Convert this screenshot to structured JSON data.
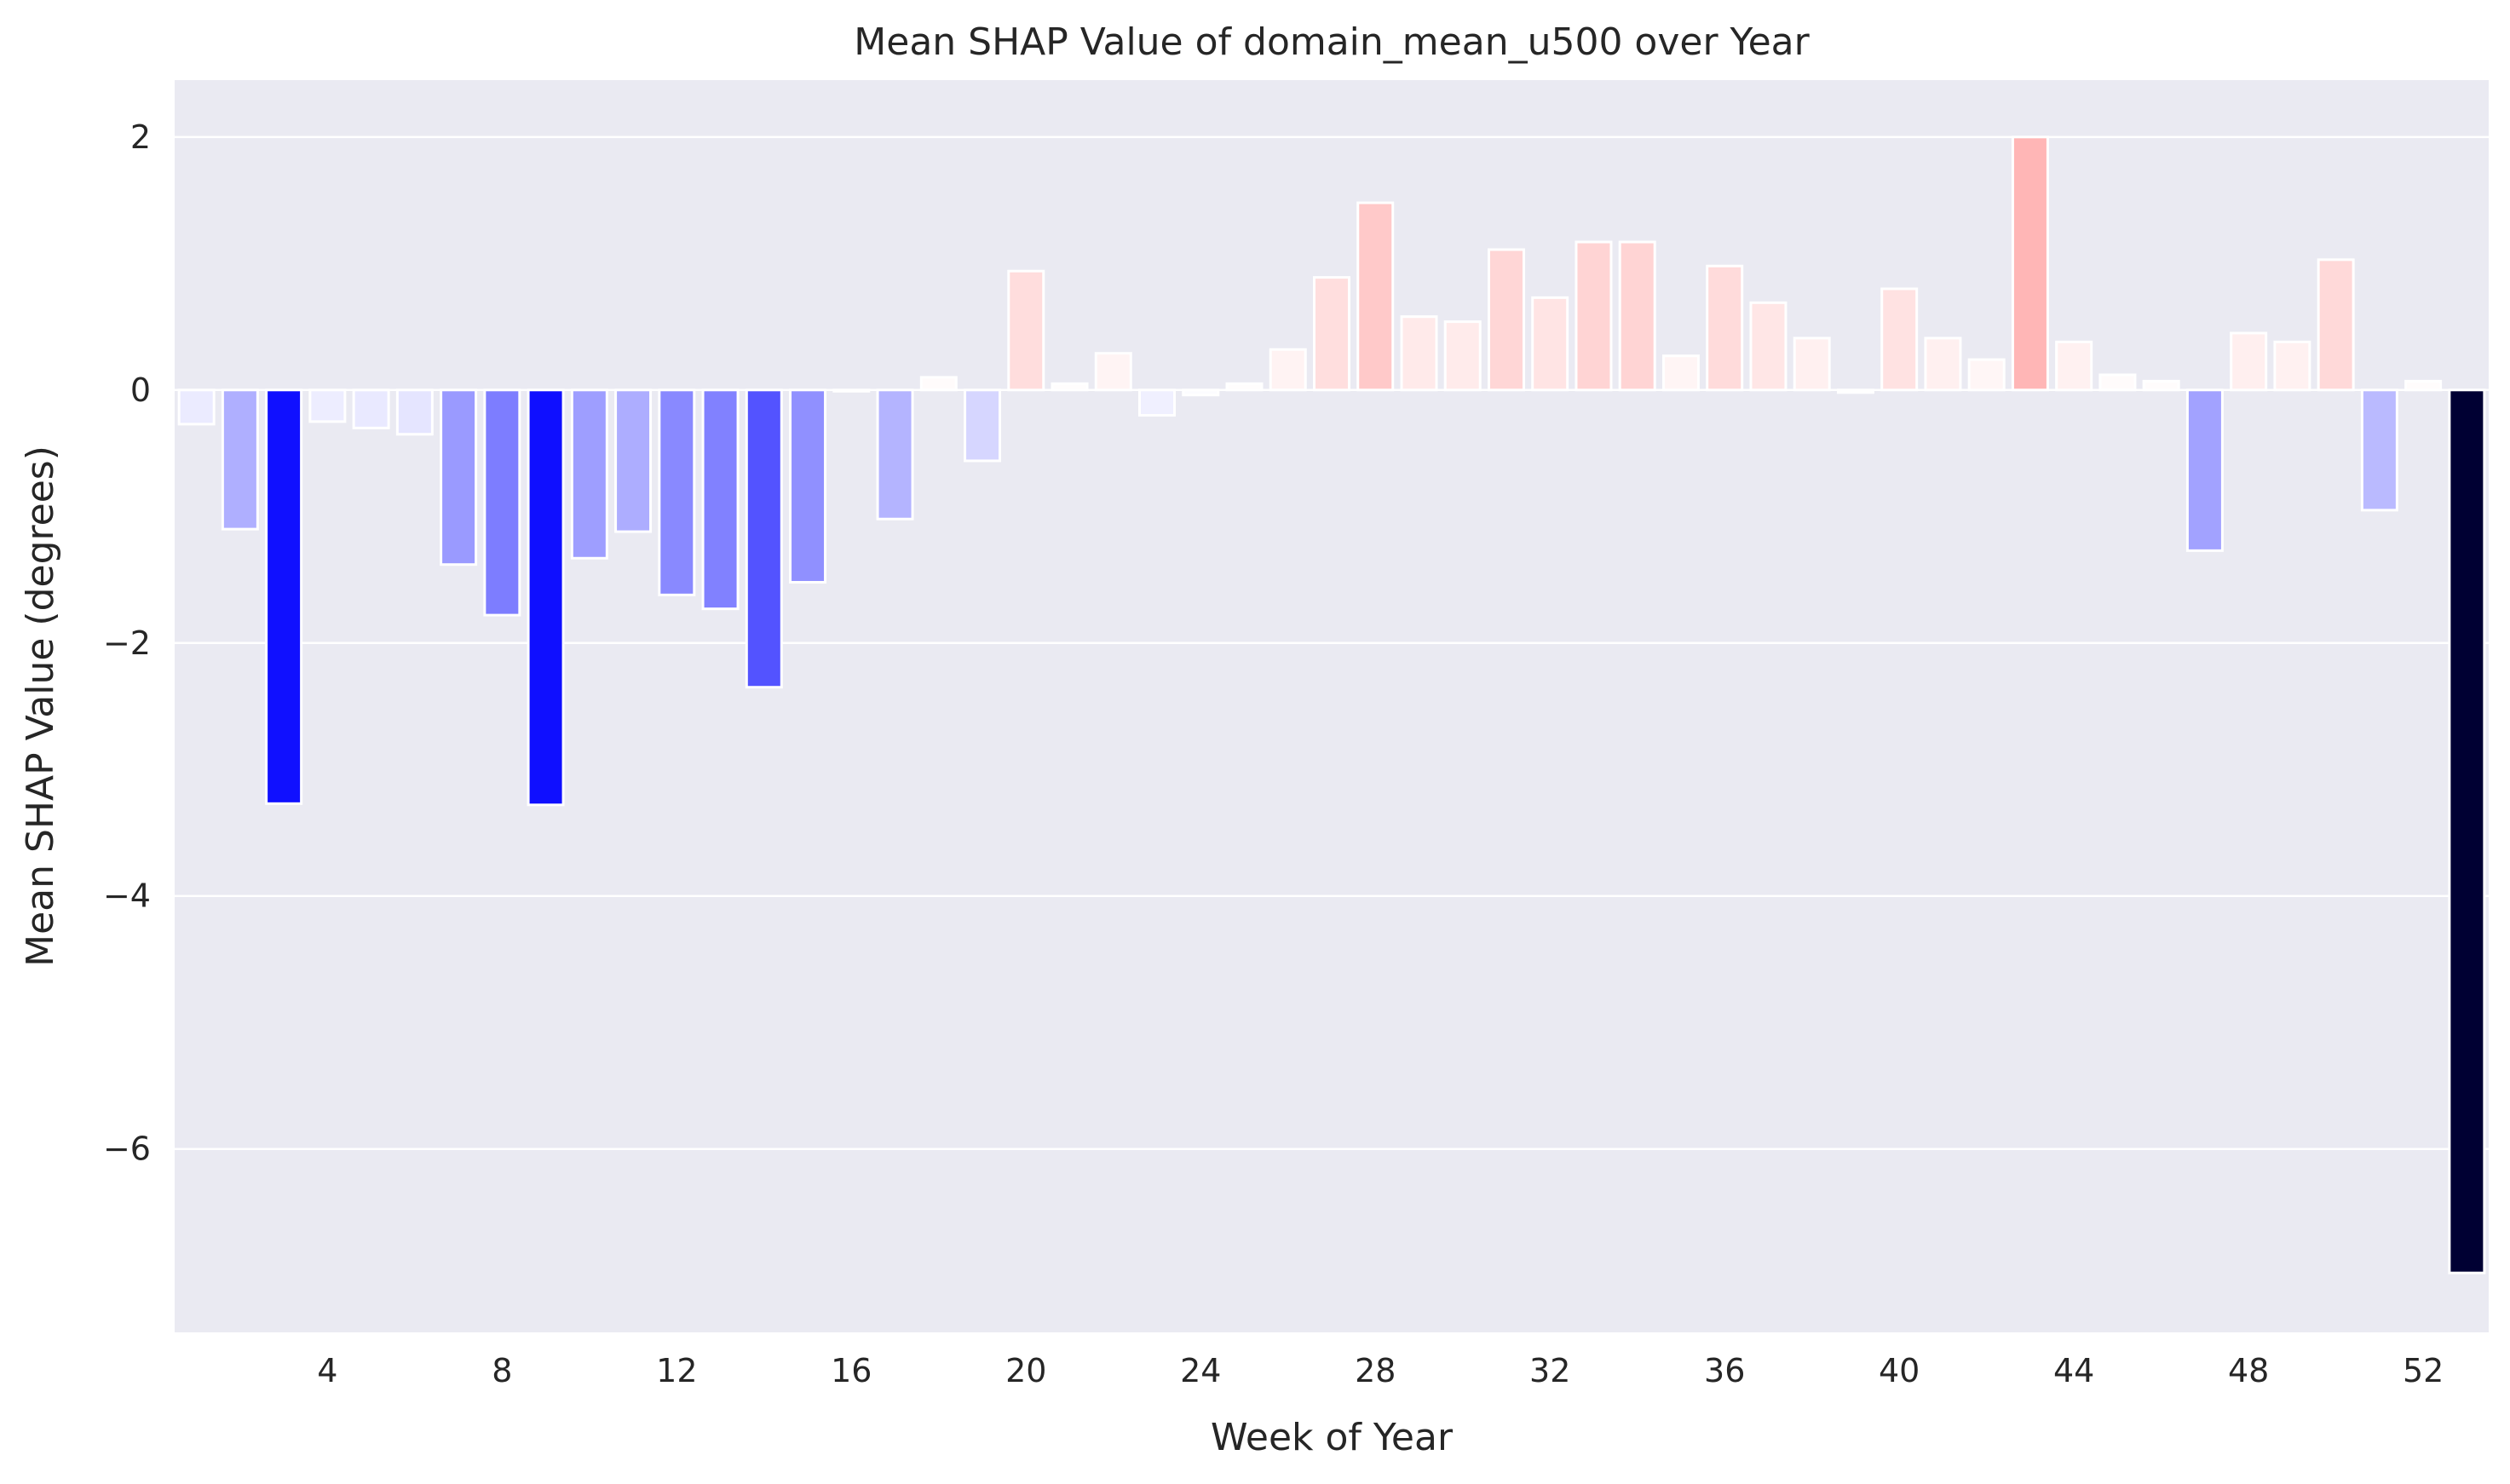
{
  "chart_data": {
    "type": "bar",
    "title": "Mean SHAP Value of domain_mean_u500 over Year",
    "xlabel": "Week of Year",
    "ylabel": "Mean SHAP Value (degrees)",
    "x": [
      1,
      2,
      3,
      4,
      5,
      6,
      7,
      8,
      9,
      10,
      11,
      12,
      13,
      14,
      15,
      16,
      17,
      18,
      19,
      20,
      21,
      22,
      23,
      24,
      25,
      26,
      27,
      28,
      29,
      30,
      31,
      32,
      33,
      34,
      35,
      36,
      37,
      38,
      39,
      40,
      41,
      42,
      43,
      44,
      45,
      46,
      47,
      48,
      49,
      50,
      51,
      52,
      53
    ],
    "values": [
      -0.27,
      -1.1,
      -3.27,
      -0.25,
      -0.3,
      -0.35,
      -1.38,
      -1.78,
      -3.28,
      -1.33,
      -1.12,
      -1.62,
      -1.73,
      -2.35,
      -1.52,
      -0.01,
      -1.02,
      0.1,
      -0.56,
      0.94,
      0.05,
      0.29,
      -0.2,
      -0.04,
      0.05,
      0.32,
      0.89,
      1.48,
      0.58,
      0.54,
      1.11,
      0.73,
      1.17,
      1.17,
      0.27,
      0.98,
      0.69,
      0.41,
      -0.02,
      0.8,
      0.41,
      0.24,
      2.0,
      0.38,
      0.12,
      0.07,
      -1.27,
      0.45,
      0.38,
      1.03,
      -0.95,
      0.07,
      -6.98
    ],
    "xticks": [
      4,
      8,
      12,
      16,
      20,
      24,
      28,
      32,
      36,
      40,
      44,
      48,
      52
    ],
    "yticks": [
      2,
      0,
      -2,
      -4,
      -6
    ],
    "ytick_labels": [
      "2",
      "0",
      "−2",
      "−4",
      "−6"
    ],
    "ylim": [
      -7.45,
      2.45
    ],
    "xlim": [
      0.5,
      53.5
    ],
    "grid": true,
    "colors": {
      "negative_max": "#000033",
      "negative_mid": "#0000ff",
      "positive_mid": "#ff0000",
      "neutral": "#ffffff",
      "background": "#eaeaf2",
      "grid": "#ffffff",
      "bar_edge": "#ffffff"
    }
  }
}
